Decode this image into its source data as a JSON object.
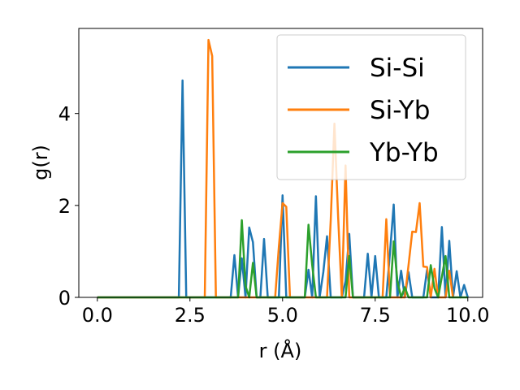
{
  "chart_data": {
    "type": "line",
    "xlabel": "r (Å)",
    "ylabel": "g(r)",
    "xlim": [
      -0.5,
      10.4
    ],
    "ylim": [
      0,
      5.85
    ],
    "xticks": [
      "0.0",
      "2.5",
      "5.0",
      "7.5",
      "10.0"
    ],
    "xtick_values": [
      0,
      2.5,
      5,
      7.5,
      10
    ],
    "yticks": [
      "0",
      "2",
      "4"
    ],
    "ytick_values": [
      0,
      2,
      4
    ],
    "grid": false,
    "legend_position": "top-right",
    "series": [
      {
        "name": "Si-Si",
        "color": "#1f77b4",
        "points": [
          [
            0,
            0
          ],
          [
            2.2,
            0
          ],
          [
            2.3,
            4.72
          ],
          [
            2.4,
            0
          ],
          [
            3.6,
            0
          ],
          [
            3.7,
            0.92
          ],
          [
            3.8,
            0
          ],
          [
            3.9,
            0.85
          ],
          [
            4.0,
            0
          ],
          [
            4.1,
            1.52
          ],
          [
            4.2,
            1.2
          ],
          [
            4.3,
            0
          ],
          [
            4.4,
            0
          ],
          [
            4.5,
            1.27
          ],
          [
            4.6,
            0
          ],
          [
            4.9,
            0
          ],
          [
            5.0,
            2.22
          ],
          [
            5.1,
            0
          ],
          [
            5.6,
            0
          ],
          [
            5.7,
            0.6
          ],
          [
            5.8,
            0
          ],
          [
            5.9,
            2.2
          ],
          [
            6.0,
            0
          ],
          [
            6.1,
            0.55
          ],
          [
            6.2,
            1.33
          ],
          [
            6.3,
            0
          ],
          [
            6.6,
            0
          ],
          [
            6.7,
            0.35
          ],
          [
            6.8,
            1.38
          ],
          [
            6.9,
            0
          ],
          [
            7.2,
            0
          ],
          [
            7.3,
            0.95
          ],
          [
            7.4,
            0
          ],
          [
            7.5,
            0.9
          ],
          [
            7.6,
            0
          ],
          [
            7.8,
            0
          ],
          [
            7.9,
            0.98
          ],
          [
            8.0,
            2.02
          ],
          [
            8.1,
            0
          ],
          [
            8.2,
            0.58
          ],
          [
            8.3,
            0
          ],
          [
            8.4,
            0.55
          ],
          [
            8.5,
            0
          ],
          [
            8.8,
            0
          ],
          [
            8.9,
            0.6
          ],
          [
            9.0,
            0
          ],
          [
            9.2,
            0
          ],
          [
            9.3,
            1.53
          ],
          [
            9.4,
            0
          ],
          [
            9.5,
            1.23
          ],
          [
            9.6,
            0
          ],
          [
            9.7,
            0.57
          ],
          [
            9.8,
            0
          ],
          [
            9.9,
            0.27
          ],
          [
            10.0,
            0
          ]
        ]
      },
      {
        "name": "Si-Yb",
        "color": "#ff7f0e",
        "points": [
          [
            0,
            0
          ],
          [
            2.9,
            0
          ],
          [
            3.0,
            5.6
          ],
          [
            3.1,
            5.25
          ],
          [
            3.2,
            0
          ],
          [
            4.8,
            0
          ],
          [
            4.9,
            1.1
          ],
          [
            5.0,
            2.05
          ],
          [
            5.1,
            1.97
          ],
          [
            5.2,
            0
          ],
          [
            6.2,
            0
          ],
          [
            6.3,
            1.68
          ],
          [
            6.4,
            3.78
          ],
          [
            6.5,
            1.75
          ],
          [
            6.6,
            0
          ],
          [
            6.7,
            2.87
          ],
          [
            6.8,
            0
          ],
          [
            7.7,
            0
          ],
          [
            7.8,
            1.7
          ],
          [
            7.9,
            0
          ],
          [
            8.3,
            0
          ],
          [
            8.4,
            0.7
          ],
          [
            8.5,
            1.43
          ],
          [
            8.6,
            1.42
          ],
          [
            8.7,
            2.05
          ],
          [
            8.8,
            0.67
          ],
          [
            8.9,
            0.66
          ],
          [
            9.0,
            0
          ],
          [
            9.1,
            0.62
          ],
          [
            9.2,
            0
          ],
          [
            9.4,
            0
          ],
          [
            9.5,
            0.58
          ],
          [
            9.6,
            0
          ]
        ]
      },
      {
        "name": "Yb-Yb",
        "color": "#2ca02c",
        "points": [
          [
            0,
            0
          ],
          [
            3.8,
            0
          ],
          [
            3.9,
            1.68
          ],
          [
            4.0,
            0.25
          ],
          [
            4.1,
            0
          ],
          [
            4.2,
            0.75
          ],
          [
            4.3,
            0
          ],
          [
            5.6,
            0
          ],
          [
            5.7,
            1.58
          ],
          [
            5.8,
            0.7
          ],
          [
            5.9,
            0
          ],
          [
            6.7,
            0
          ],
          [
            6.8,
            0.9
          ],
          [
            6.9,
            0
          ],
          [
            7.9,
            0
          ],
          [
            8.0,
            1.22
          ],
          [
            8.1,
            0.35
          ],
          [
            8.2,
            0
          ],
          [
            8.3,
            0.22
          ],
          [
            8.4,
            0
          ],
          [
            8.9,
            0
          ],
          [
            9.0,
            0.7
          ],
          [
            9.1,
            0.2
          ],
          [
            9.2,
            0
          ],
          [
            9.4,
            0.9
          ],
          [
            9.5,
            0
          ],
          [
            10.0,
            0
          ]
        ]
      }
    ]
  }
}
